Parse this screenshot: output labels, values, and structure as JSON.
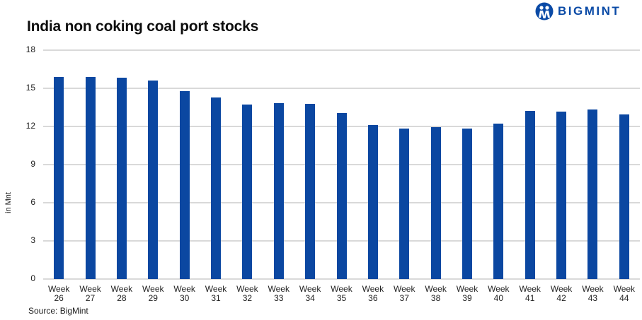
{
  "header": {
    "title": "India non coking coal port stocks",
    "logo_text": "BIGMINT",
    "logo_icon": "bigmint-logo-icon"
  },
  "footer": {
    "source": "Source: BigMint"
  },
  "colors": {
    "bar": "#0b47a1",
    "logo": "#0a4aa6",
    "grid": "#d9d9d9"
  },
  "chart_data": {
    "type": "bar",
    "title": "India non coking coal port stocks",
    "xlabel": "",
    "ylabel": "in Mnt",
    "ylim": [
      0,
      18
    ],
    "yticks": [
      0,
      3,
      6,
      9,
      12,
      15,
      18
    ],
    "grid": true,
    "legend": null,
    "categories": [
      "Week 26",
      "Week 27",
      "Week 28",
      "Week 29",
      "Week 30",
      "Week 31",
      "Week 32",
      "Week 33",
      "Week 34",
      "Week 35",
      "Week 36",
      "Week 37",
      "Week 38",
      "Week 39",
      "Week 40",
      "Week 41",
      "Week 42",
      "Week 43",
      "Week 44"
    ],
    "category_lines": [
      [
        "Week",
        "26"
      ],
      [
        "Week",
        "27"
      ],
      [
        "Week",
        "28"
      ],
      [
        "Week",
        "29"
      ],
      [
        "Week",
        "30"
      ],
      [
        "Week",
        "31"
      ],
      [
        "Week",
        "32"
      ],
      [
        "Week",
        "33"
      ],
      [
        "Week",
        "34"
      ],
      [
        "Week",
        "35"
      ],
      [
        "Week",
        "36"
      ],
      [
        "Week",
        "37"
      ],
      [
        "Week",
        "38"
      ],
      [
        "Week",
        "39"
      ],
      [
        "Week",
        "40"
      ],
      [
        "Week",
        "41"
      ],
      [
        "Week",
        "42"
      ],
      [
        "Week",
        "43"
      ],
      [
        "Week",
        "44"
      ]
    ],
    "values": [
      15.87,
      15.9,
      15.83,
      15.59,
      14.78,
      14.28,
      13.7,
      13.85,
      13.78,
      13.04,
      12.09,
      11.85,
      11.93,
      11.85,
      12.2,
      13.24,
      13.17,
      13.32,
      12.96
    ],
    "source": "Source: BigMint"
  }
}
